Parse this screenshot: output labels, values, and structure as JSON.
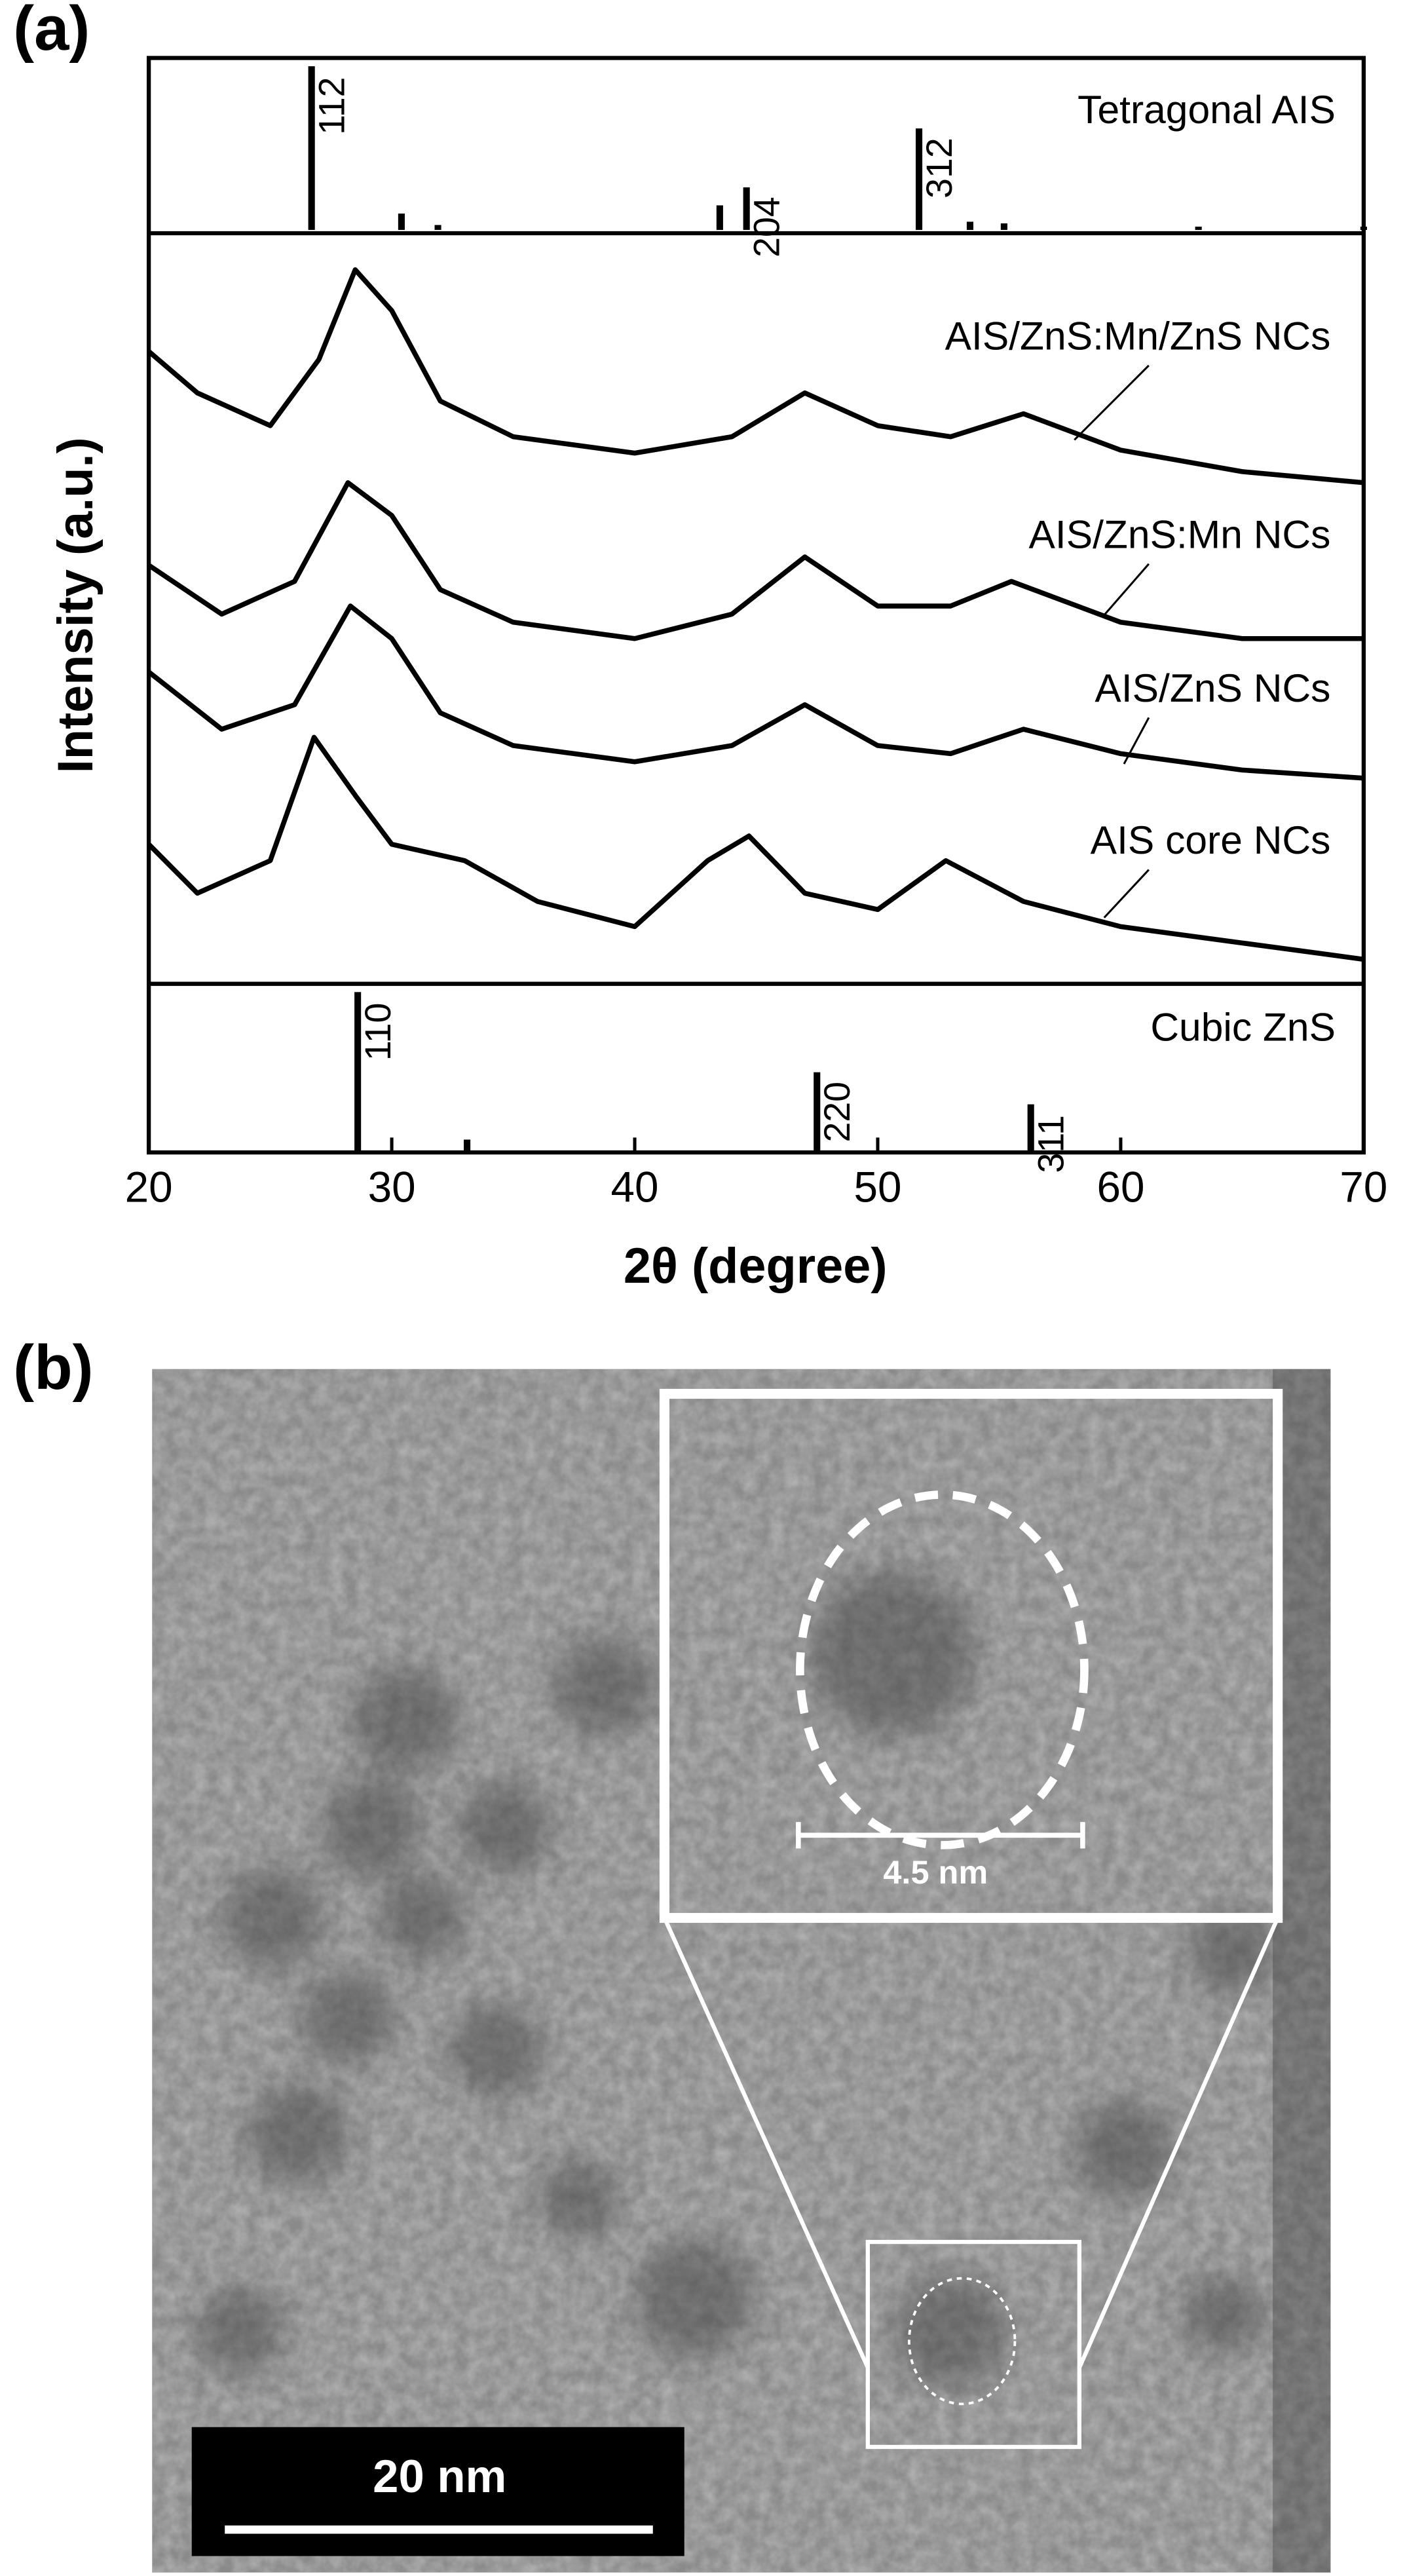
{
  "panel_a_label": "(a)",
  "chart_data": {
    "type": "line",
    "x_label": "2θ (degree)",
    "y_label": "Intensity (a.u.)",
    "xlim": [
      20,
      70
    ],
    "xticks": [
      20,
      30,
      40,
      50,
      60,
      70
    ],
    "ylim": [
      0,
      100
    ],
    "series": [
      {
        "name": "AIS/ZnS:Mn/ZnS NCs",
        "color": "#000000",
        "x": [
          20,
          22,
          25,
          27,
          28.5,
          30,
          32,
          35,
          40,
          44,
          47,
          50,
          53,
          56,
          60,
          65,
          70
        ],
        "values": [
          85.2,
          79.6,
          75.2,
          84.1,
          96.2,
          90.7,
          78.5,
          73.7,
          71.5,
          73.7,
          79.6,
          75.2,
          73.7,
          76.8,
          71.9,
          69.0,
          67.5
        ]
      },
      {
        "name": "AIS/ZnS:Mn NCs",
        "color": "#000000",
        "x": [
          20,
          23,
          26,
          28.2,
          30,
          32,
          35,
          40,
          44,
          47,
          50,
          53,
          55.5,
          60,
          65,
          70
        ],
        "values": [
          56.4,
          49.8,
          54.2,
          67.5,
          63.1,
          53.1,
          48.7,
          46.5,
          49.8,
          57.5,
          50.9,
          50.9,
          54.2,
          48.7,
          46.5,
          46.5
        ]
      },
      {
        "name": "AIS/ZnS NCs",
        "color": "#000000",
        "x": [
          20,
          23,
          26,
          28.3,
          30,
          32,
          35,
          40,
          44,
          47,
          50,
          53,
          56,
          60,
          65,
          70
        ],
        "values": [
          42.0,
          34.3,
          37.6,
          50.9,
          46.5,
          36.5,
          32.1,
          29.9,
          32.1,
          37.6,
          32.1,
          31.0,
          34.3,
          31.0,
          28.8,
          27.7
        ]
      },
      {
        "name": "AIS core NCs",
        "color": "#000000",
        "x": [
          20,
          22,
          25,
          26.8,
          28.5,
          30,
          33,
          36,
          40,
          43,
          44.7,
          47,
          50,
          52.8,
          56,
          60,
          65,
          70
        ],
        "values": [
          18.8,
          12.2,
          16.6,
          33.2,
          25.4,
          18.8,
          16.6,
          11.1,
          7.7,
          16.6,
          19.9,
          12.2,
          10.0,
          16.6,
          11.1,
          7.7,
          5.5,
          3.3
        ]
      }
    ],
    "reference_patterns": [
      {
        "name": "Tetragonal AIS",
        "position": "top",
        "ylim": [
          0,
          100
        ],
        "x": [
          26.7,
          30.4,
          31.9,
          43.5,
          44.6,
          51.7,
          53.8,
          55.2,
          63.2,
          70
        ],
        "values": [
          100,
          10,
          3,
          15,
          26,
          62,
          5,
          4,
          2,
          2
        ],
        "labels": [
          "112",
          null,
          null,
          null,
          "204",
          "312",
          null,
          null,
          null,
          null
        ]
      },
      {
        "name": "Cubic ZnS",
        "position": "bottom",
        "ylim": [
          0,
          100
        ],
        "x": [
          28.6,
          33.1,
          47.5,
          56.3
        ],
        "values": [
          100,
          8,
          50,
          30
        ],
        "labels": [
          "110",
          null,
          "220",
          "311"
        ]
      }
    ]
  },
  "panel_b": {
    "label": "(b)",
    "inset_scale": "4.5 nm",
    "scale_bar": "20 nm"
  }
}
